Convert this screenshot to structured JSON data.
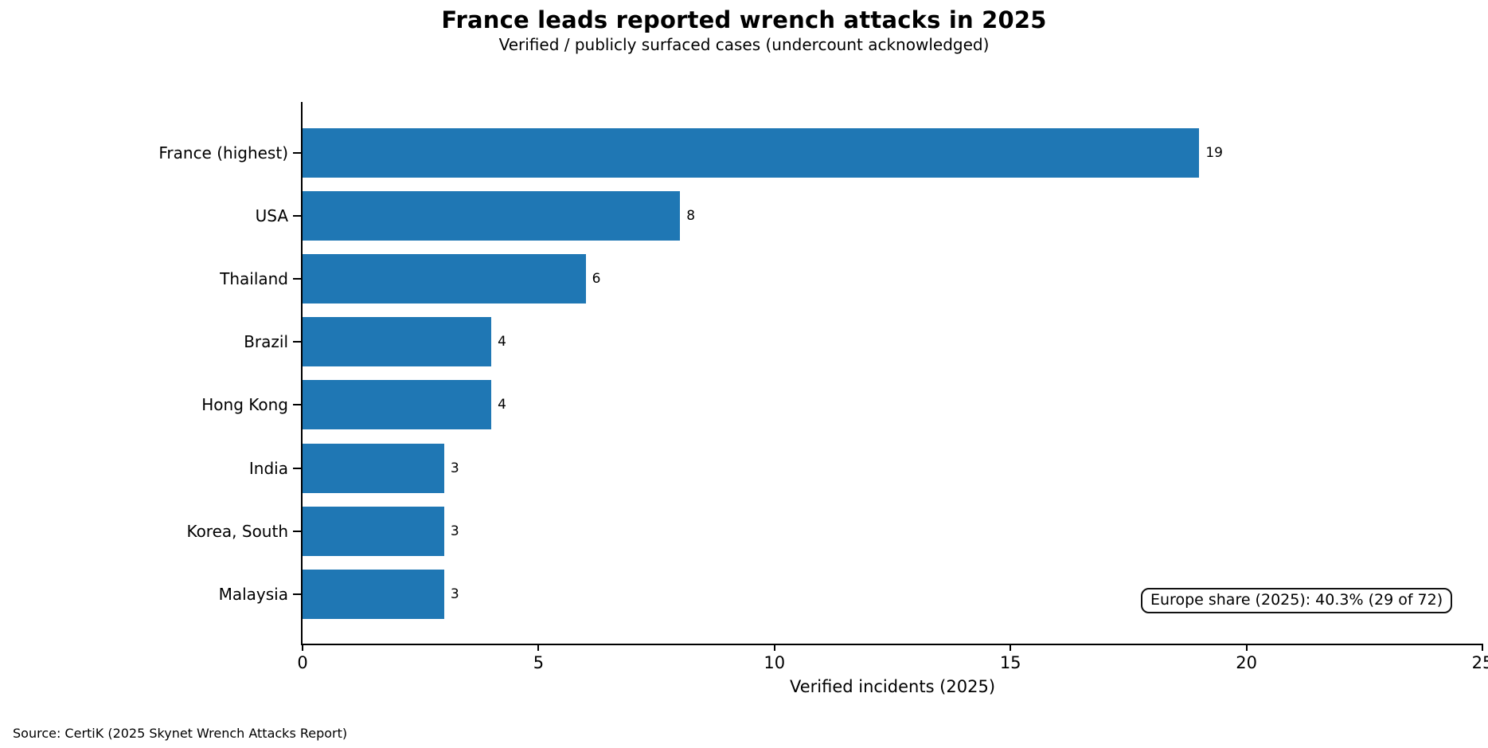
{
  "chart_data": {
    "type": "bar",
    "orientation": "horizontal",
    "title": "France leads reported wrench attacks in 2025",
    "subtitle": "Verified / publicly surfaced cases (undercount acknowledged)",
    "categories": [
      "France (highest)",
      "USA",
      "Thailand",
      "Brazil",
      "Hong Kong",
      "India",
      "Korea, South",
      "Malaysia"
    ],
    "values": [
      19,
      8,
      6,
      4,
      4,
      3,
      3,
      3
    ],
    "xlabel": "Verified incidents (2025)",
    "xlim": [
      0,
      25
    ],
    "xticks": [
      0,
      5,
      10,
      15,
      20,
      25
    ],
    "grid": false,
    "legend_position": "none",
    "colors": {
      "bar": "#1f77b4",
      "axis": "#000000",
      "text": "#000000"
    },
    "annotation": "Europe share (2025): 40.3% (29 of 72)",
    "source": "Source: CertiK (2025 Skynet Wrench Attacks Report)"
  }
}
